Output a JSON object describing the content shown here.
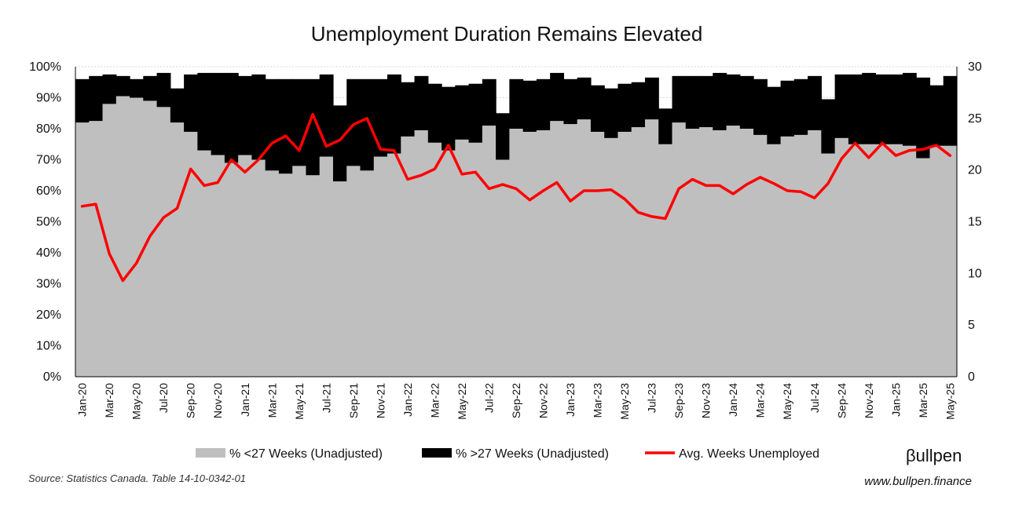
{
  "chart_data": {
    "type": "bar",
    "title": "Unemployment Duration Remains Elevated",
    "xlabel": "",
    "ylabel": "",
    "y_left": {
      "min": 0,
      "max": 100,
      "step": 10,
      "suffix": "%"
    },
    "y_right": {
      "min": 0,
      "max": 30,
      "step": 5
    },
    "grid": true,
    "legend_position": "bottom",
    "colors": {
      "short": "#bfbfbf",
      "long": "#000000",
      "avg": "#ff0000",
      "grid": "#d9d9d9"
    },
    "x_tick_labels": [
      "Jan-20",
      "Mar-20",
      "May-20",
      "Jul-20",
      "Sep-20",
      "Nov-20",
      "Jan-21",
      "Mar-21",
      "May-21",
      "Jul-21",
      "Sep-21",
      "Nov-21",
      "Jan-22",
      "Mar-22",
      "May-22",
      "Jul-22",
      "Sep-22",
      "Nov-22",
      "Jan-23",
      "Mar-23",
      "May-23",
      "Jul-23",
      "Sep-23",
      "Nov-23",
      "Jan-24",
      "Mar-24",
      "May-24",
      "Jul-24",
      "Sep-24",
      "Nov-24",
      "Jan-25",
      "Mar-25",
      "May-25"
    ],
    "categories": [
      "Jan-20",
      "Feb-20",
      "Mar-20",
      "Apr-20",
      "May-20",
      "Jun-20",
      "Jul-20",
      "Aug-20",
      "Sep-20",
      "Oct-20",
      "Nov-20",
      "Dec-20",
      "Jan-21",
      "Feb-21",
      "Mar-21",
      "Apr-21",
      "May-21",
      "Jun-21",
      "Jul-21",
      "Aug-21",
      "Sep-21",
      "Oct-21",
      "Nov-21",
      "Dec-21",
      "Jan-22",
      "Feb-22",
      "Mar-22",
      "Apr-22",
      "May-22",
      "Jun-22",
      "Jul-22",
      "Aug-22",
      "Sep-22",
      "Oct-22",
      "Nov-22",
      "Dec-22",
      "Jan-23",
      "Feb-23",
      "Mar-23",
      "Apr-23",
      "May-23",
      "Jun-23",
      "Jul-23",
      "Aug-23",
      "Sep-23",
      "Oct-23",
      "Nov-23",
      "Dec-23",
      "Jan-24",
      "Feb-24",
      "Mar-24",
      "Apr-24",
      "May-24",
      "Jun-24",
      "Jul-24",
      "Aug-24",
      "Sep-24",
      "Oct-24",
      "Nov-24",
      "Dec-24",
      "Jan-25",
      "Feb-25",
      "Mar-25",
      "Apr-25",
      "May-25"
    ],
    "series": [
      {
        "name": "% <27 Weeks (Unadjusted)",
        "axis": "left",
        "kind": "stacked-area",
        "values": [
          82,
          82.5,
          88,
          90.5,
          90,
          89,
          87,
          82,
          79,
          73,
          71.5,
          69,
          71.5,
          70,
          66.5,
          65.5,
          68,
          65,
          71,
          63,
          68,
          66.5,
          71,
          72,
          77.5,
          79.5,
          75.5,
          73,
          76.5,
          75.5,
          81,
          70,
          80,
          79,
          79.5,
          82.5,
          81.5,
          83,
          79,
          77,
          79,
          80.5,
          83,
          75,
          82,
          80,
          80.5,
          79.5,
          81,
          80,
          78,
          75,
          77.5,
          78,
          79.5,
          72,
          77,
          75,
          75,
          75,
          75,
          74.5,
          70.5,
          74.5,
          74.5
        ]
      },
      {
        "name": "% >27 Weeks (Unadjusted)",
        "axis": "left",
        "kind": "stacked-area",
        "values": [
          14,
          14.5,
          9.5,
          6.5,
          6,
          8,
          11,
          11,
          18.5,
          25,
          26.5,
          29,
          25.5,
          27.5,
          29.5,
          30.5,
          28,
          31,
          26.5,
          24.5,
          28,
          29.5,
          25,
          25.5,
          17.5,
          17.5,
          19,
          20.5,
          17.5,
          19,
          15,
          15,
          16,
          16.5,
          16.5,
          15.5,
          14.5,
          13.5,
          15,
          16,
          15.5,
          14.5,
          13.5,
          11.5,
          15,
          17,
          16.5,
          18.5,
          16.5,
          17,
          18,
          18.5,
          18,
          18,
          17.5,
          17.5,
          20.5,
          22.5,
          23,
          22.5,
          22.5,
          23.5,
          26,
          19.5,
          22.5
        ]
      },
      {
        "name": "Avg. Weeks Unemployed",
        "axis": "right",
        "kind": "line",
        "values": [
          16.5,
          16.7,
          11.9,
          9.3,
          11,
          13.6,
          15.4,
          16.3,
          20.1,
          18.5,
          18.8,
          21,
          19.8,
          21,
          22.6,
          23.3,
          21.9,
          25.4,
          22.3,
          22.9,
          24.4,
          25,
          22,
          21.9,
          19.1,
          19.5,
          20.1,
          22.4,
          19.6,
          19.8,
          18.2,
          18.6,
          18.2,
          17.1,
          18,
          18.8,
          17,
          18,
          18,
          18.1,
          17.2,
          15.9,
          15.5,
          15.3,
          18.2,
          19.1,
          18.5,
          18.5,
          17.7,
          18.6,
          19.3,
          18.7,
          18,
          17.9,
          17.3,
          18.7,
          21.1,
          22.6,
          21.2,
          22.6,
          21.4,
          21.9,
          22,
          22.4,
          21.4
        ]
      }
    ]
  },
  "legend": [
    {
      "label": "% <27 Weeks (Unadjusted)",
      "color": "#bfbfbf",
      "kind": "box"
    },
    {
      "label": "% >27 Weeks (Unadjusted)",
      "color": "#000000",
      "kind": "box"
    },
    {
      "label": "Avg. Weeks Unemployed",
      "color": "#ff0000",
      "kind": "line"
    }
  ],
  "footer": {
    "source": "Source: Statistics Canada. Table 14-10-0342-01",
    "brand": "βullpen",
    "website": "www.bullpen.finance"
  }
}
